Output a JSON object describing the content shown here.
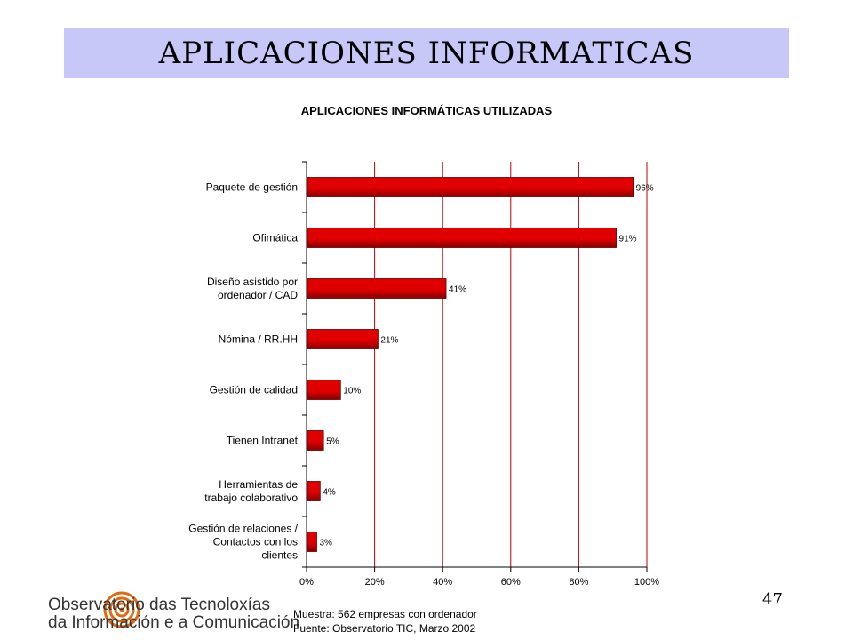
{
  "slide": {
    "title": "APLICACIONES INFORMATICAS",
    "page_number": "47",
    "footnotes": [
      "Muestra: 562 empresas con ordenador",
      "Fuente: Observatorio TIC, Marzo 2002"
    ],
    "logo": {
      "line1": "Observatorio das Tecnoloxías",
      "line2": "da Información e a Comunicación"
    }
  },
  "colors": {
    "title_band": "#c8c8f8",
    "bar": "#e00000",
    "bar_dark": "#8a0000",
    "grid": "#c00000",
    "logo": "#e06a10"
  },
  "chart_data": {
    "type": "bar",
    "orientation": "horizontal",
    "title": "APLICACIONES INFORMÁTICAS UTILIZADAS",
    "categories": [
      [
        "Paquete de gestión"
      ],
      [
        "Ofimática"
      ],
      [
        "Diseño asistido por",
        "ordenador / CAD"
      ],
      [
        "Nómina / RR.HH"
      ],
      [
        "Gestión de calidad"
      ],
      [
        "Tienen Intranet"
      ],
      [
        "Herramientas de",
        "trabajo colaborativo"
      ],
      [
        "Gestión de relaciones /",
        "Contactos con los",
        "clientes"
      ]
    ],
    "values": [
      96,
      91,
      41,
      21,
      10,
      5,
      4,
      3
    ],
    "value_labels": [
      "96%",
      "91%",
      "41%",
      "21%",
      "10%",
      "5%",
      "4%",
      "3%"
    ],
    "x_ticks": [
      "0%",
      "20%",
      "40%",
      "60%",
      "80%",
      "100%"
    ],
    "xlim": [
      0,
      100
    ],
    "grid": true
  }
}
